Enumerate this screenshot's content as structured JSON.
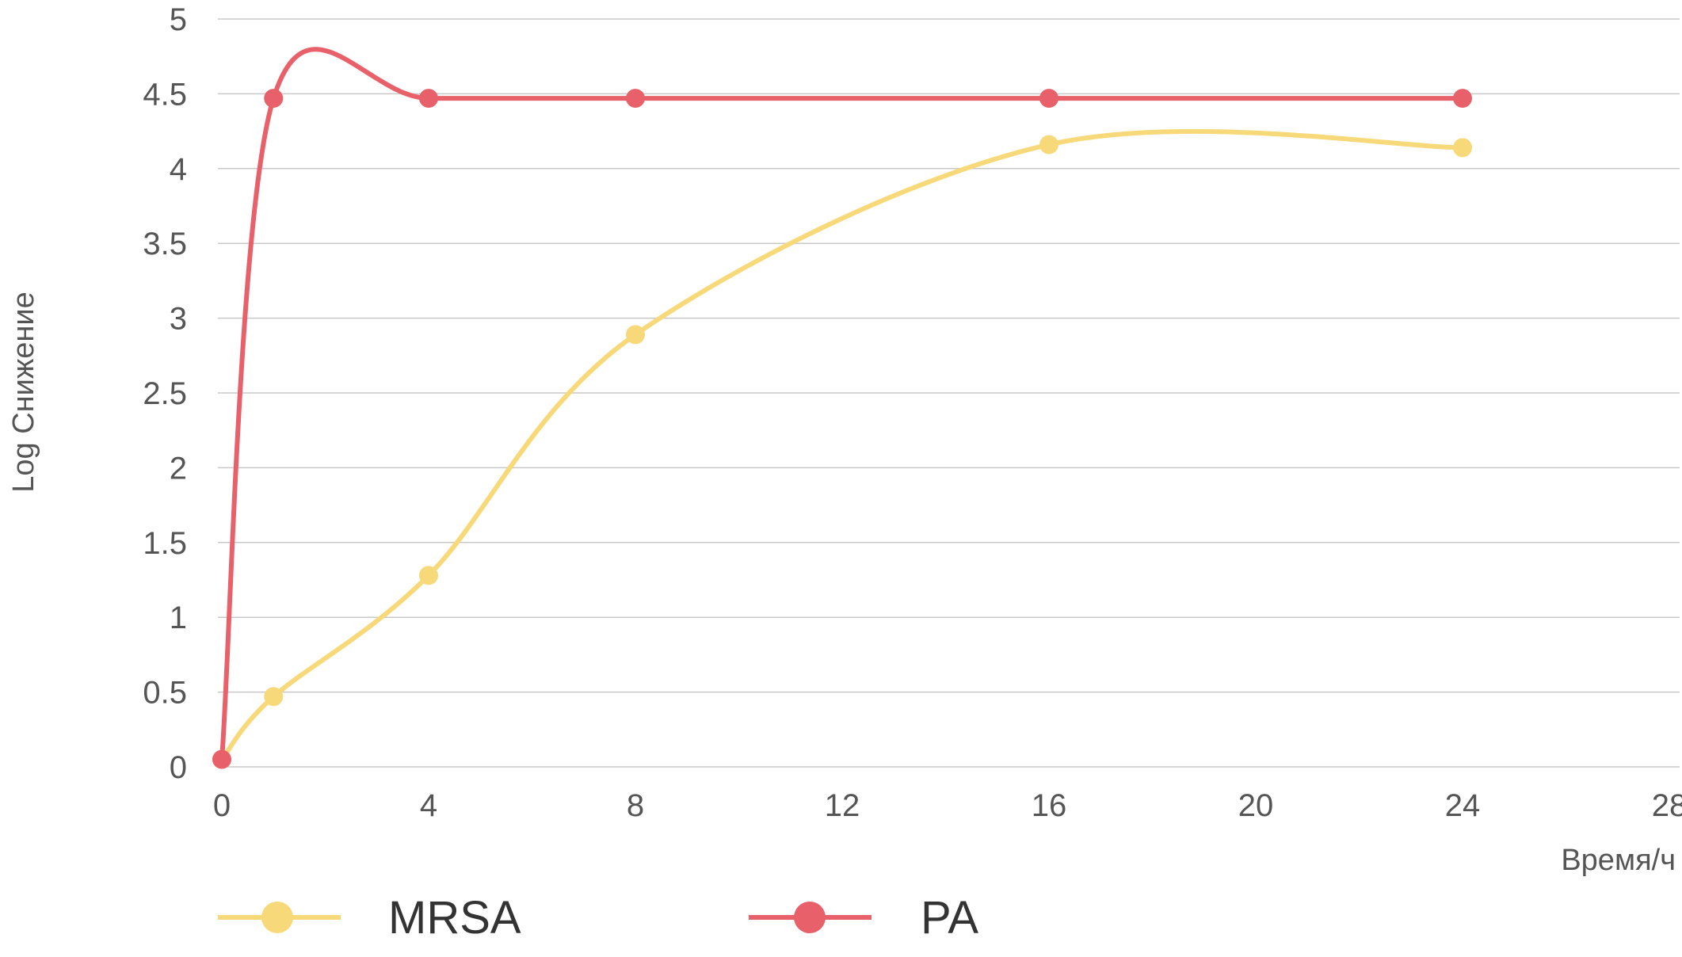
{
  "chart_data": {
    "type": "line",
    "title": "",
    "xlabel": "Время/ч",
    "ylabel": "Log Снижение",
    "xlim": [
      0,
      28
    ],
    "ylim": [
      0,
      5
    ],
    "x_ticks": [
      "0",
      "4",
      "8",
      "12",
      "16",
      "20",
      "24",
      "28"
    ],
    "y_ticks": [
      "0",
      "0.5",
      "1",
      "1.5",
      "2",
      "2.5",
      "3",
      "3.5",
      "4",
      "4.5",
      "5"
    ],
    "grid": true,
    "smooth": true,
    "legend_position": "bottom",
    "series": [
      {
        "name": "MRSA",
        "color": "#f7d97a",
        "x": [
          0,
          1,
          4,
          8,
          16,
          24
        ],
        "y": [
          0.05,
          0.47,
          1.28,
          2.89,
          4.16,
          4.14
        ]
      },
      {
        "name": "PA",
        "color": "#e8616a",
        "x": [
          0,
          1,
          4,
          8,
          16,
          24
        ],
        "y": [
          0.05,
          4.47,
          4.47,
          4.47,
          4.47,
          4.47
        ]
      }
    ]
  }
}
